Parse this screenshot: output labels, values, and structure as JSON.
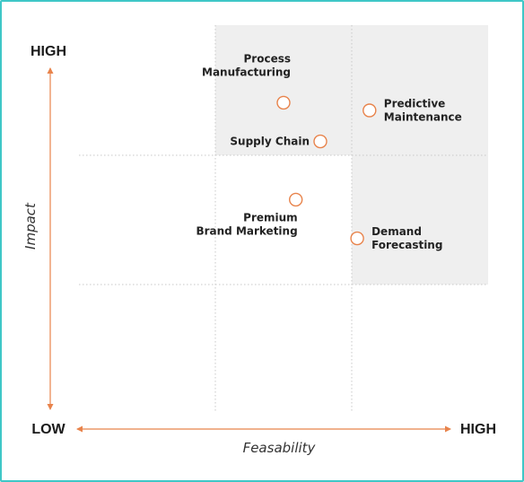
{
  "chart_data": {
    "type": "scatter",
    "title": "",
    "xlabel": "Feasability",
    "ylabel": "Impact",
    "x_low_label": "LOW",
    "x_high_label": "HIGH",
    "y_high_label": "HIGH",
    "xlim": [
      0,
      10
    ],
    "ylim": [
      0,
      10
    ],
    "grid": "dotted quadrant lines",
    "points": [
      {
        "name": "Process Manufacturing",
        "lines": [
          "Process",
          "Manufacturing"
        ],
        "x": 5.0,
        "y": 8.0,
        "label_side": "above"
      },
      {
        "name": "Predictive Maintenance",
        "lines": [
          "Predictive",
          "Maintenance"
        ],
        "x": 7.1,
        "y": 7.8,
        "label_side": "right"
      },
      {
        "name": "Supply Chain",
        "lines": [
          "Supply Chain"
        ],
        "x": 5.9,
        "y": 7.0,
        "label_side": "left"
      },
      {
        "name": "Premium Brand Marketing",
        "lines": [
          "Premium",
          "Brand Marketing"
        ],
        "x": 5.3,
        "y": 5.5,
        "label_side": "below"
      },
      {
        "name": "Demand Forecasting",
        "lines": [
          "Demand",
          "Forecasting"
        ],
        "x": 6.8,
        "y": 4.5,
        "label_side": "right"
      }
    ],
    "colors": {
      "accent": "#e8834b",
      "shade": "#efefef",
      "grid": "#c8c8c8",
      "frame": "#3fc7c7"
    }
  }
}
